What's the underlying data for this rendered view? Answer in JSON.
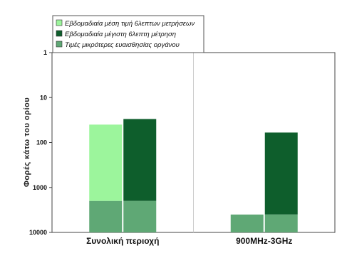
{
  "chart_data": {
    "type": "bar",
    "ylabel": "Φορές κάτω του ορίου",
    "yscale": "log",
    "y_reversed": true,
    "ylim": [
      1,
      10000
    ],
    "yticks": [
      "1",
      "10",
      "100",
      "1000",
      "10000"
    ],
    "categories": [
      "Συνολική περιοχή",
      "900MHz-3GHz"
    ],
    "legend_position": "top-left",
    "series": [
      {
        "name": "Εβδομαδιαία μέση τιμή 6λεπτων μετρήσεων",
        "color": "#9cf59c",
        "values": [
          40,
          null
        ]
      },
      {
        "name": "Εβδομαδιαία μέγιστη 6λεπτη μέτρηση",
        "color": "#0e5e2c",
        "values": [
          30,
          60
        ]
      },
      {
        "name": "Τιμές μικρότερες ευαισθησίας οργάνου",
        "color": "#5fa875",
        "values": [
          2000,
          4000
        ]
      }
    ],
    "bar_groups": [
      {
        "category": "Συνολική περιοχή",
        "bars": [
          {
            "series": [
              0,
              2
            ],
            "top_value": 40,
            "split_value": 2000
          },
          {
            "series": [
              1,
              2
            ],
            "top_value": 30,
            "split_value": 2000
          }
        ]
      },
      {
        "category": "900MHz-3GHz",
        "bars": [
          {
            "series": [
              2
            ],
            "top_value": 4000,
            "split_value": 4000
          },
          {
            "series": [
              1,
              2
            ],
            "top_value": 60,
            "split_value": 4000
          }
        ]
      }
    ],
    "grid": "vertical-category-divider",
    "background": "#ffffff"
  }
}
